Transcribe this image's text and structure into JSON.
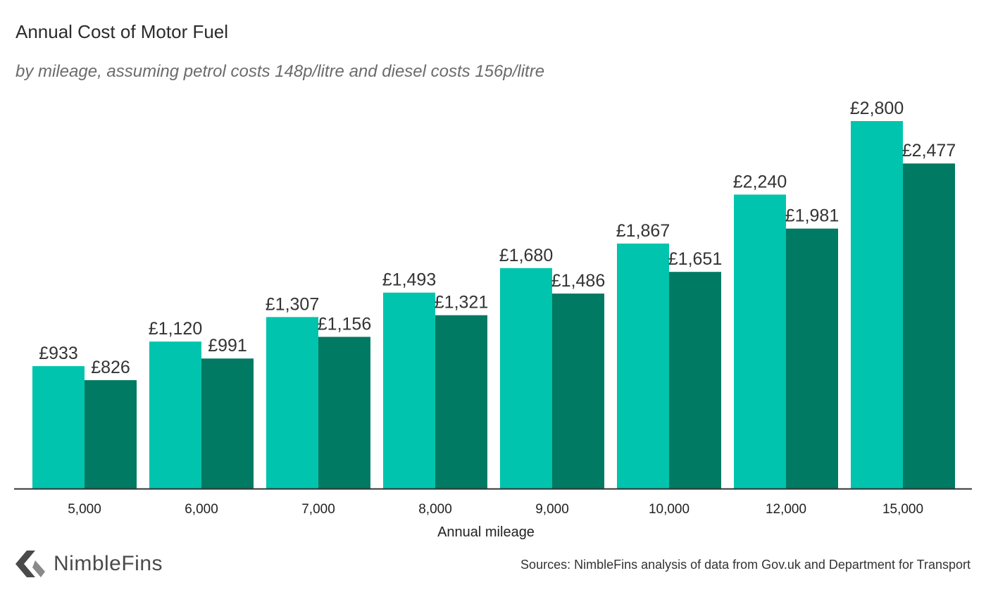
{
  "header": {
    "title": "Annual Cost of Motor Fuel",
    "subtitle": "by mileage, assuming petrol costs 148p/litre and diesel costs 156p/litre"
  },
  "chart_data": {
    "type": "bar",
    "title": "Annual Cost of Motor Fuel",
    "subtitle": "by mileage, assuming petrol costs 148p/litre and diesel costs 156p/litre",
    "xlabel": "Annual mileage",
    "ylabel": "",
    "categories": [
      "5,000",
      "6,000",
      "7,000",
      "8,000",
      "9,000",
      "10,000",
      "12,000",
      "15,000"
    ],
    "series": [
      {
        "values": [
          933,
          1120,
          1307,
          1493,
          1680,
          1867,
          2240,
          2800
        ],
        "labels": [
          "£933",
          "£1,120",
          "£1,307",
          "£1,493",
          "£1,680",
          "£1,867",
          "£2,240",
          "£2,800"
        ],
        "color": "#00c4ad"
      },
      {
        "values": [
          826,
          991,
          1156,
          1321,
          1486,
          1651,
          1981,
          2477
        ],
        "labels": [
          "£826",
          "£991",
          "£1,156",
          "£1,321",
          "£1,486",
          "£1,651",
          "£1,981",
          "£2,477"
        ],
        "color": "#007a62"
      }
    ],
    "ylim": [
      0,
      2800
    ],
    "grid": false,
    "legend": "none"
  },
  "footer": {
    "logo_text": "NimbleFins",
    "source": "Sources: NimbleFins analysis of data from Gov.uk and Department for Transport"
  },
  "colors": {
    "logo_mark": "#4a4a4a",
    "axis_line": "#333333"
  },
  "icons": {
    "logo_mark": "chevron-left-icon"
  }
}
